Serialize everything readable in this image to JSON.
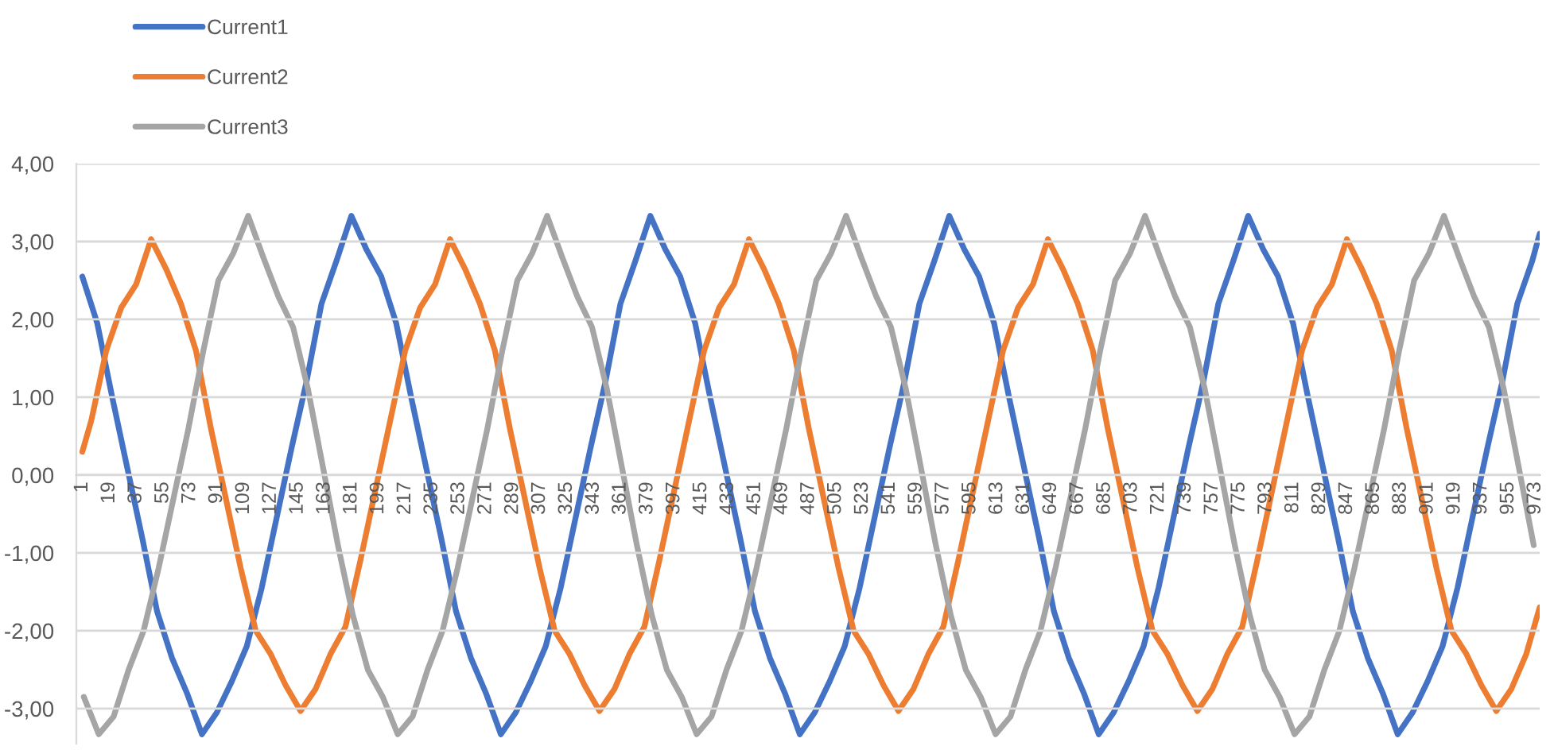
{
  "chart_data": {
    "type": "line",
    "xlim": [
      -3,
      976
    ],
    "xticks": [
      1,
      19,
      37,
      55,
      73,
      91,
      109,
      127,
      145,
      163,
      181,
      199,
      217,
      235,
      253,
      271,
      289,
      307,
      325,
      343,
      361,
      379,
      397,
      415,
      433,
      451,
      469,
      487,
      505,
      523,
      541,
      559,
      577,
      595,
      613,
      631,
      649,
      667,
      685,
      703,
      721,
      739,
      757,
      775,
      793,
      811,
      829,
      847,
      865,
      883,
      901,
      919,
      937,
      955,
      973
    ],
    "ylim": [
      -3.45,
      4.0
    ],
    "yticks": [
      {
        "value": -3,
        "label": "-3,00"
      },
      {
        "value": -2,
        "label": "-2,00"
      },
      {
        "value": -1,
        "label": "-1,00"
      },
      {
        "value": 0,
        "label": "0,00"
      },
      {
        "value": 1,
        "label": "1,00"
      },
      {
        "value": 2,
        "label": "2,00"
      },
      {
        "value": 3,
        "label": "3,00"
      },
      {
        "value": 4,
        "label": "4,00"
      }
    ],
    "grid": "y",
    "legend": "top left",
    "marker": "none",
    "line_style": "solid",
    "series": [
      {
        "name": "Current1",
        "color": "#4472c4",
        "x": [
          1,
          11,
          21,
          31,
          41,
          51,
          61,
          71,
          81,
          91,
          101,
          111,
          121,
          131,
          141,
          151,
          161,
          171,
          181,
          191,
          201,
          211,
          221,
          231,
          241,
          251,
          261,
          271,
          281,
          291,
          301,
          311,
          321,
          331,
          341,
          351,
          361,
          371,
          381,
          391,
          401,
          411,
          421,
          431,
          441,
          451,
          461,
          471,
          481,
          491,
          501,
          511,
          521,
          531,
          541,
          551,
          561,
          571,
          581,
          591,
          601,
          611,
          621,
          631,
          641,
          651,
          661,
          671,
          681,
          691,
          701,
          711,
          721,
          731,
          741,
          751,
          761,
          771,
          781,
          791,
          801,
          811,
          821,
          831,
          841,
          851,
          861,
          871,
          881,
          891,
          901,
          911,
          921,
          931,
          941,
          951,
          961,
          971,
          976
        ],
        "values": [
          2.55,
          1.95,
          1.0,
          0.1,
          -0.8,
          -1.75,
          -2.35,
          -2.8,
          -3.33,
          -3.05,
          -2.65,
          -2.2,
          -1.45,
          -0.55,
          0.35,
          1.2,
          2.2,
          2.75,
          3.33,
          2.9,
          2.55,
          1.95,
          1.0,
          0.1,
          -0.8,
          -1.75,
          -2.35,
          -2.8,
          -3.33,
          -3.05,
          -2.65,
          -2.2,
          -1.45,
          -0.55,
          0.35,
          1.2,
          2.2,
          2.75,
          3.33,
          2.9,
          2.55,
          1.95,
          1.0,
          0.1,
          -0.8,
          -1.75,
          -2.35,
          -2.8,
          -3.33,
          -3.05,
          -2.65,
          -2.2,
          -1.45,
          -0.55,
          0.35,
          1.2,
          2.2,
          2.75,
          3.33,
          2.9,
          2.55,
          1.95,
          1.0,
          0.1,
          -0.8,
          -1.75,
          -2.35,
          -2.8,
          -3.33,
          -3.05,
          -2.65,
          -2.2,
          -1.45,
          -0.55,
          0.35,
          1.2,
          2.2,
          2.75,
          3.33,
          2.9,
          2.55,
          1.95,
          1.0,
          0.1,
          -0.8,
          -1.75,
          -2.35,
          -2.8,
          -3.33,
          -3.05,
          -2.65,
          -2.2,
          -1.45,
          -0.55,
          0.35,
          1.2,
          2.2,
          2.75,
          3.1
        ]
      },
      {
        "name": "Current2",
        "color": "#ed7d31",
        "x": [
          1,
          7,
          17,
          27,
          37,
          47,
          57,
          67,
          77,
          87,
          97,
          107,
          117,
          127,
          137,
          147,
          157,
          167,
          177,
          187,
          197,
          207,
          217,
          227,
          237,
          247,
          257,
          267,
          277,
          287,
          297,
          307,
          317,
          327,
          337,
          347,
          357,
          367,
          377,
          387,
          397,
          407,
          417,
          427,
          437,
          447,
          457,
          467,
          477,
          487,
          497,
          507,
          517,
          527,
          537,
          547,
          557,
          567,
          577,
          587,
          597,
          607,
          617,
          627,
          637,
          647,
          657,
          667,
          677,
          687,
          697,
          707,
          717,
          727,
          737,
          747,
          757,
          767,
          777,
          787,
          797,
          807,
          817,
          827,
          837,
          847,
          857,
          867,
          877,
          887,
          897,
          907,
          917,
          927,
          937,
          947,
          957,
          967,
          976
        ],
        "values": [
          0.3,
          0.7,
          1.6,
          2.15,
          2.45,
          3.03,
          2.65,
          2.2,
          1.6,
          0.6,
          -0.3,
          -1.2,
          -2.0,
          -2.3,
          -2.7,
          -3.03,
          -2.75,
          -2.3,
          -1.95,
          -1.1,
          -0.2,
          0.7,
          1.6,
          2.15,
          2.45,
          3.03,
          2.65,
          2.2,
          1.6,
          0.6,
          -0.3,
          -1.2,
          -2.0,
          -2.3,
          -2.7,
          -3.03,
          -2.75,
          -2.3,
          -1.95,
          -1.1,
          -0.2,
          0.7,
          1.6,
          2.15,
          2.45,
          3.03,
          2.65,
          2.2,
          1.6,
          0.6,
          -0.3,
          -1.2,
          -2.0,
          -2.3,
          -2.7,
          -3.03,
          -2.75,
          -2.3,
          -1.95,
          -1.1,
          -0.2,
          0.7,
          1.6,
          2.15,
          2.45,
          3.03,
          2.65,
          2.2,
          1.6,
          0.6,
          -0.3,
          -1.2,
          -2.0,
          -2.3,
          -2.7,
          -3.03,
          -2.75,
          -2.3,
          -1.95,
          -1.1,
          -0.2,
          0.7,
          1.6,
          2.15,
          2.45,
          3.03,
          2.65,
          2.2,
          1.6,
          0.6,
          -0.3,
          -1.2,
          -2.0,
          -2.3,
          -2.7,
          -3.03,
          -2.75,
          -2.3,
          -1.7
        ]
      },
      {
        "name": "Current3",
        "color": "#a5a5a5",
        "x": [
          2,
          12,
          22,
          32,
          42,
          52,
          62,
          72,
          82,
          92,
          102,
          112,
          122,
          132,
          142,
          152,
          162,
          172,
          182,
          192,
          202,
          212,
          222,
          232,
          242,
          252,
          262,
          272,
          282,
          292,
          302,
          312,
          322,
          332,
          342,
          352,
          362,
          372,
          382,
          392,
          402,
          412,
          422,
          432,
          442,
          452,
          462,
          472,
          482,
          492,
          502,
          512,
          522,
          532,
          542,
          552,
          562,
          572,
          582,
          592,
          602,
          612,
          622,
          632,
          642,
          652,
          662,
          672,
          682,
          692,
          702,
          712,
          722,
          732,
          742,
          752,
          762,
          772,
          782,
          792,
          802,
          812,
          822,
          832,
          842,
          852,
          862,
          872,
          882,
          892,
          902,
          912,
          922,
          932,
          942,
          952,
          962,
          972
        ],
        "values": [
          -2.85,
          -3.33,
          -3.1,
          -2.5,
          -2.0,
          -1.2,
          -0.3,
          0.6,
          1.6,
          2.5,
          2.85,
          3.33,
          2.8,
          2.3,
          1.9,
          1.1,
          0.1,
          -0.9,
          -1.8,
          -2.5,
          -2.85,
          -3.33,
          -3.1,
          -2.5,
          -2.0,
          -1.2,
          -0.3,
          0.6,
          1.6,
          2.5,
          2.85,
          3.33,
          2.8,
          2.3,
          1.9,
          1.1,
          0.1,
          -0.9,
          -1.8,
          -2.5,
          -2.85,
          -3.33,
          -3.1,
          -2.5,
          -2.0,
          -1.2,
          -0.3,
          0.6,
          1.6,
          2.5,
          2.85,
          3.33,
          2.8,
          2.3,
          1.9,
          1.1,
          0.1,
          -0.9,
          -1.8,
          -2.5,
          -2.85,
          -3.33,
          -3.1,
          -2.5,
          -2.0,
          -1.2,
          -0.3,
          0.6,
          1.6,
          2.5,
          2.85,
          3.33,
          2.8,
          2.3,
          1.9,
          1.1,
          0.1,
          -0.9,
          -1.8,
          -2.5,
          -2.85,
          -3.33,
          -3.1,
          -2.5,
          -2.0,
          -1.2,
          -0.3,
          0.6,
          1.6,
          2.5,
          2.85,
          3.33,
          2.8,
          2.3,
          1.9,
          1.1,
          0.1,
          -0.9
        ]
      }
    ]
  }
}
